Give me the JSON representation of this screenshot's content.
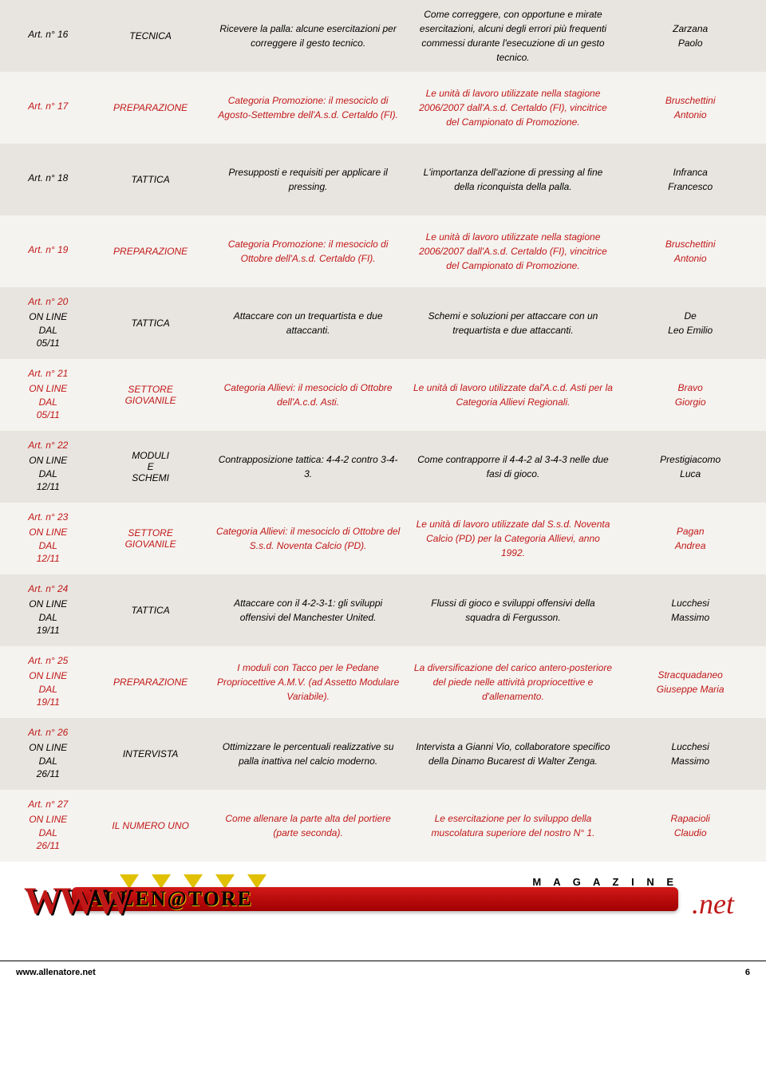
{
  "rows": [
    {
      "alt": 0,
      "article_num": "Art. n° 16",
      "online": "",
      "category": "TECNICA",
      "title": "Ricevere la palla: alcune esercitazioni per correggere il gesto tecnico.",
      "desc": "Come correggere, con opportune e mirate esercitazioni, alcuni degli errori più frequenti commessi durante l'esecuzione di un gesto tecnico.",
      "author": "Zarzana Paolo",
      "color": "black"
    },
    {
      "alt": 1,
      "article_num": "Art. n° 17",
      "online": "",
      "category": "PREPARAZIONE",
      "title": "Categoria Promozione: il mesociclo di Agosto-Settembre dell'A.s.d. Certaldo (FI).",
      "desc": "Le unità di lavoro utilizzate nella stagione 2006/2007 dall'A.s.d. Certaldo (FI), vincitrice del Campionato di Promozione.",
      "author": "Bruschettini Antonio",
      "color": "red"
    },
    {
      "alt": 0,
      "article_num": "Art. n° 18",
      "online": "",
      "category": "TATTICA",
      "title": "Presupposti e requisiti per applicare il pressing.",
      "desc": "L'importanza dell'azione di pressing al fine della riconquista della palla.",
      "author": "Infranca Francesco",
      "color": "black"
    },
    {
      "alt": 1,
      "article_num": "Art. n° 19",
      "online": "",
      "category": "PREPARAZIONE",
      "title": "Categoria Promozione: il mesociclo di Ottobre dell'A.s.d. Certaldo (FI).",
      "desc": "Le unità di lavoro utilizzate nella stagione 2006/2007 dall'A.s.d. Certaldo (FI), vincitrice del Campionato di Promozione.",
      "author": "Bruschettini Antonio",
      "color": "red"
    },
    {
      "alt": 0,
      "article_num": "Art. n° 20",
      "online": "ON LINE DAL 05/11",
      "category": "TATTICA",
      "title": "Attaccare con un trequartista e due attaccanti.",
      "desc": "Schemi e soluzioni per attaccare con un trequartista e due attaccanti.",
      "author": "De Leo Emilio",
      "color": "black"
    },
    {
      "alt": 1,
      "article_num": "Art. n° 21",
      "online": "ON LINE DAL 05/11",
      "category": "SETTORE GIOVANILE",
      "title": "Categoria Allievi: il mesociclo di Ottobre dell'A.c.d. Asti.",
      "desc": "Le unità di lavoro utilizzate dal'A.c.d. Asti per la Categoria Allievi Regionali.",
      "author": "Bravo Giorgio",
      "color": "red"
    },
    {
      "alt": 0,
      "article_num": "Art. n° 22",
      "online": "ON LINE DAL 12/11",
      "category": "MODULI E SCHEMI",
      "title": "Contrapposizione tattica: 4-4-2 contro 3-4-3.",
      "desc": "Come contrapporre il 4-4-2 al 3-4-3  nelle due fasi di gioco.",
      "author": "Prestigiacomo Luca",
      "color": "black"
    },
    {
      "alt": 1,
      "article_num": "Art. n° 23",
      "online": "ON LINE DAL 12/11",
      "category": "SETTORE GIOVANILE",
      "title": "Categoria Allievi: il mesociclo di Ottobre del S.s.d. Noventa Calcio (PD).",
      "desc": "Le unità di lavoro utilizzate dal S.s.d. Noventa Calcio (PD) per la Categoria Allievi, anno 1992.",
      "author": "Pagan Andrea",
      "color": "red"
    },
    {
      "alt": 0,
      "article_num": "Art. n° 24",
      "online": "ON LINE DAL 19/11",
      "category": "TATTICA",
      "title": "Attaccare con il 4-2-3-1: gli sviluppi offensivi del Manchester United.",
      "desc": "Flussi di gioco e sviluppi offensivi della squadra di Fergusson.",
      "author": "Lucchesi Massimo",
      "color": "black"
    },
    {
      "alt": 1,
      "article_num": "Art. n° 25",
      "online": "ON LINE DAL 19/11",
      "category": "PREPARAZIONE",
      "title": "I moduli con Tacco per le Pedane Propriocettive A.M.V. (ad Assetto Modulare Variabile).",
      "desc": "La diversificazione del carico antero-posteriore del piede nelle attività propriocettive e d'allenamento.",
      "author": "Stracquadaneo Giuseppe Maria",
      "color": "red"
    },
    {
      "alt": 0,
      "article_num": "Art. n° 26",
      "online": "ON LINE DAL 26/11",
      "category": "INTERVISTA",
      "title": "Ottimizzare le percentuali realizzative su palla inattiva nel calcio moderno.",
      "desc": "Intervista a Gianni Vio, collaboratore specifico della Dinamo Bucarest di Walter Zenga.",
      "author": "Lucchesi Massimo",
      "color": "black"
    },
    {
      "alt": 1,
      "article_num": "Art. n° 27",
      "online": "ON LINE DAL 26/11",
      "category": "IL NUMERO UNO",
      "title": "Come allenare la parte alta del portiere (parte seconda).",
      "desc": "Le esercitazione per lo sviluppo della muscolatura superiore del nostro N° 1.",
      "author": "Rapacioli Claudio",
      "color": "red"
    }
  ],
  "banner": {
    "www": "WWW",
    "main": "ALLEN@TORE",
    "net": ".net",
    "magazine": "M A G A Z I N E"
  },
  "footer": {
    "left": "www.allenatore.net",
    "page": "6"
  },
  "colors": {
    "red": "#c01818",
    "black": "#000000",
    "alt0": "#e8e5e0",
    "alt1": "#f5f3ef"
  }
}
